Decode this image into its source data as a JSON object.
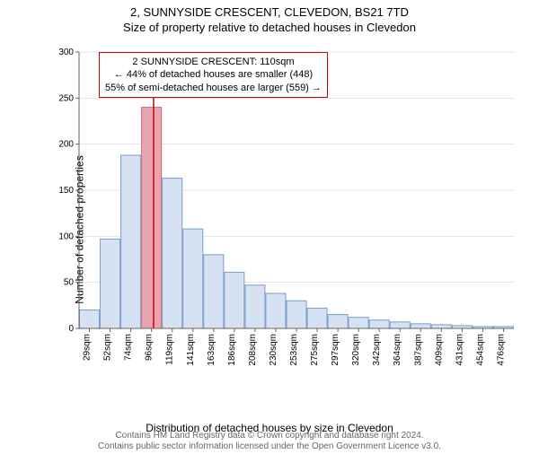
{
  "titles": {
    "main": "2, SUNNYSIDE CRESCENT, CLEVEDON, BS21 7TD",
    "sub": "Size of property relative to detached houses in Clevedon"
  },
  "axes": {
    "ylabel": "Number of detached properties",
    "xlabel": "Distribution of detached houses by size in Clevedon",
    "ylim": [
      0,
      300
    ],
    "yticks": [
      0,
      50,
      100,
      150,
      200,
      250,
      300
    ],
    "xtick_labels": [
      "29sqm",
      "52sqm",
      "74sqm",
      "96sqm",
      "119sqm",
      "141sqm",
      "163sqm",
      "186sqm",
      "208sqm",
      "230sqm",
      "253sqm",
      "275sqm",
      "297sqm",
      "320sqm",
      "342sqm",
      "364sqm",
      "387sqm",
      "409sqm",
      "431sqm",
      "454sqm",
      "476sqm"
    ],
    "font_size": 12,
    "tick_font_size": 10,
    "axis_color": "#666666",
    "grid_color": "#cccccc"
  },
  "chart": {
    "type": "histogram",
    "values": [
      20,
      97,
      188,
      240,
      163,
      108,
      80,
      61,
      47,
      38,
      30,
      22,
      15,
      12,
      9,
      7,
      5,
      4,
      3,
      2,
      2
    ],
    "bar_fill": "#d6e2f2",
    "bar_stroke": "#7a9ccc",
    "highlight_index": 3,
    "highlight_fill": "#e8a5b0",
    "highlight_stroke": "#cc6677",
    "marker_line_color": "#cc0000",
    "marker_position": 3.6,
    "background_color": "#ffffff"
  },
  "annotation": {
    "line1": "2 SUNNYSIDE CRESCENT: 110sqm",
    "line2": "← 44% of detached houses are smaller (448)",
    "line3": "55% of semi-detached houses are larger (559) →",
    "border_color": "#cc0000",
    "font_size": 11
  },
  "footer": {
    "line1": "Contains HM Land Registry data © Crown copyright and database right 2024.",
    "line2": "Contains public sector information licensed under the Open Government Licence v3.0.",
    "color": "#666666",
    "font_size": 10
  }
}
